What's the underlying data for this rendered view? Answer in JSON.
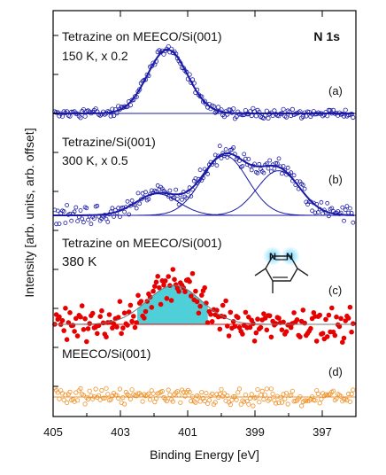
{
  "chart_data": {
    "type": "scatter",
    "title": "N 1s",
    "xlabel": "Binding Energy [eV]",
    "ylabel": "Intensity [arb. units, arb. offset]",
    "xlim": [
      405,
      396
    ],
    "x_reversed": true,
    "x_ticks": [
      405,
      403,
      401,
      399,
      397
    ],
    "y_ticks_labeled": false,
    "grid": false,
    "colors": {
      "panel_a": "#1a1aa6",
      "panel_b": "#1a1aa6",
      "panel_c_points": "#e60000",
      "panel_c_fill": "#4fd0d8",
      "panel_d": "#f0922a"
    },
    "panels": [
      {
        "id": "a",
        "label_line1": "Tetrazine on MEECO/Si(001)",
        "label_line2": "150 K, x 0.2",
        "tag": "(a)",
        "peaks": [
          {
            "center": 401.6,
            "fwhm": 1.4,
            "height": 1.0
          }
        ],
        "noise": 0.06
      },
      {
        "id": "b",
        "label_line1": "Tetrazine/Si(001)",
        "label_line2": "300 K, x 0.5",
        "tag": "(b)",
        "peaks": [
          {
            "center": 401.9,
            "fwhm": 1.5,
            "height": 0.27
          },
          {
            "center": 399.9,
            "fwhm": 1.6,
            "height": 0.75
          },
          {
            "center": 398.3,
            "fwhm": 1.5,
            "height": 0.56
          }
        ],
        "noise": 0.09
      },
      {
        "id": "c",
        "label_line1": "Tetrazine on MEECO/Si(001)",
        "label_line2": "380 K",
        "tag": "(c)",
        "peaks": [
          {
            "center": 401.4,
            "fwhm": 1.9,
            "height": 0.55
          }
        ],
        "noise": 0.2
      },
      {
        "id": "d",
        "label_line1": "MEECO/Si(001)",
        "tag": "(d)",
        "peaks": [],
        "noise": 0.12
      }
    ]
  }
}
